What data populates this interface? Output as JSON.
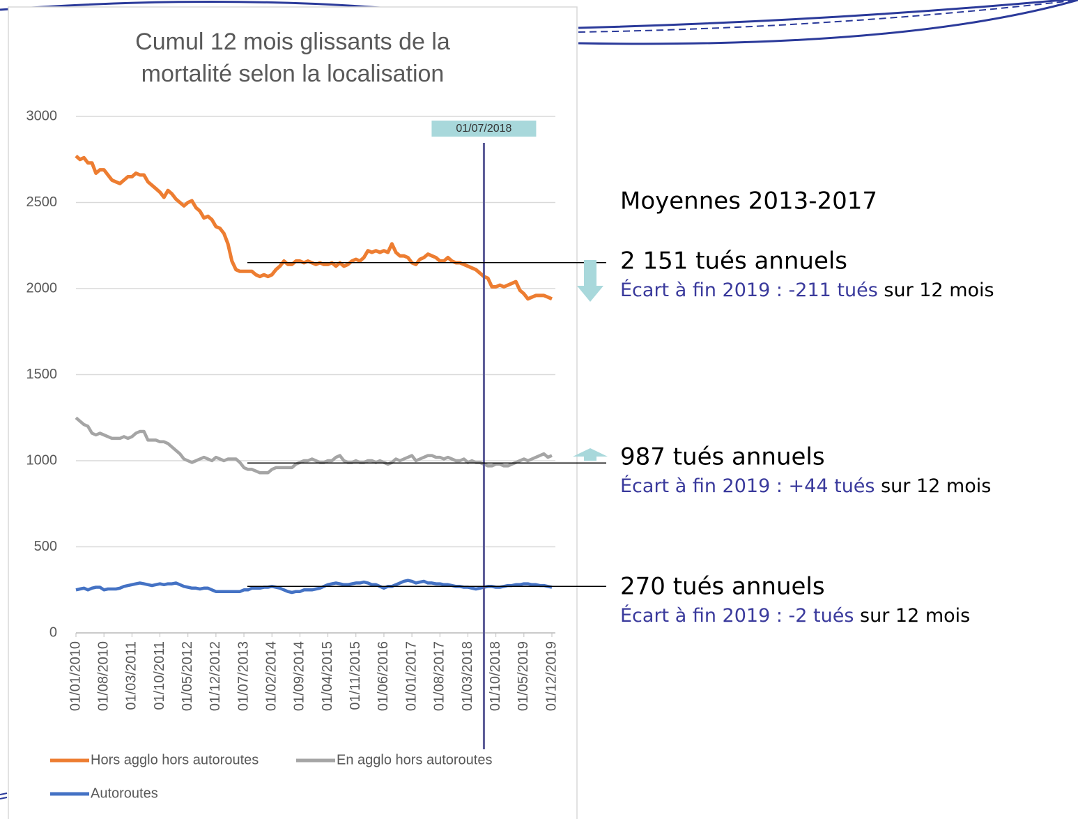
{
  "chart_data": {
    "type": "line",
    "title_lines": [
      "Cumul 12 mois glissants de la",
      "mortalité selon la localisation"
    ],
    "categories": [
      "01/01/2010",
      null,
      null,
      null,
      null,
      null,
      null,
      "01/08/2010",
      null,
      null,
      null,
      null,
      null,
      null,
      "01/03/2011",
      null,
      null,
      null,
      null,
      null,
      null,
      "01/10/2011",
      null,
      null,
      null,
      null,
      null,
      null,
      "01/05/2012",
      null,
      null,
      null,
      null,
      null,
      null,
      "01/12/2012",
      null,
      null,
      null,
      null,
      null,
      null,
      "01/07/2013",
      null,
      null,
      null,
      null,
      null,
      null,
      "01/02/2014",
      null,
      null,
      null,
      null,
      null,
      null,
      "01/09/2014",
      null,
      null,
      null,
      null,
      null,
      null,
      "01/04/2015",
      null,
      null,
      null,
      null,
      null,
      null,
      "01/11/2015",
      null,
      null,
      null,
      null,
      null,
      null,
      "01/06/2016",
      null,
      null,
      null,
      null,
      null,
      null,
      "01/01/2017",
      null,
      null,
      null,
      null,
      null,
      null,
      "01/08/2017",
      null,
      null,
      null,
      null,
      null,
      null,
      "01/03/2018",
      null,
      null,
      null,
      null,
      null,
      null,
      "01/10/2018",
      null,
      null,
      null,
      null,
      null,
      null,
      "01/05/2019",
      null,
      null,
      null,
      null,
      null,
      null,
      "01/12/2019"
    ],
    "series": [
      {
        "name": "Hors agglo hors autoroutes",
        "color": "#ed7d31",
        "values": [
          2770,
          2750,
          2760,
          2730,
          2730,
          2670,
          2690,
          2690,
          2660,
          2630,
          2620,
          2610,
          2630,
          2650,
          2650,
          2670,
          2660,
          2660,
          2620,
          2600,
          2580,
          2560,
          2530,
          2570,
          2550,
          2520,
          2500,
          2480,
          2500,
          2510,
          2470,
          2450,
          2410,
          2420,
          2400,
          2360,
          2350,
          2320,
          2260,
          2160,
          2110,
          2100,
          2100,
          2100,
          2100,
          2080,
          2070,
          2080,
          2070,
          2080,
          2110,
          2130,
          2160,
          2140,
          2140,
          2160,
          2160,
          2150,
          2160,
          2150,
          2140,
          2150,
          2140,
          2140,
          2150,
          2130,
          2150,
          2130,
          2140,
          2160,
          2170,
          2160,
          2180,
          2220,
          2210,
          2220,
          2210,
          2220,
          2210,
          2260,
          2210,
          2190,
          2190,
          2180,
          2150,
          2140,
          2170,
          2180,
          2200,
          2190,
          2180,
          2160,
          2160,
          2180,
          2160,
          2150,
          2150,
          2140,
          2130,
          2120,
          2110,
          2090,
          2070,
          2060,
          2010,
          2010,
          2020,
          2010,
          2020,
          2030,
          2040,
          1990,
          1970,
          1940,
          1950,
          1960,
          1960,
          1960,
          1950,
          1940
        ]
      },
      {
        "name": "En agglo hors autoroutes",
        "color": "#a5a5a5",
        "values": [
          1250,
          1230,
          1210,
          1200,
          1160,
          1150,
          1160,
          1150,
          1140,
          1130,
          1130,
          1130,
          1140,
          1130,
          1140,
          1160,
          1170,
          1170,
          1120,
          1120,
          1120,
          1110,
          1110,
          1100,
          1080,
          1060,
          1040,
          1010,
          1000,
          990,
          1000,
          1010,
          1020,
          1010,
          1000,
          1020,
          1010,
          1000,
          1010,
          1010,
          1010,
          990,
          960,
          950,
          950,
          940,
          930,
          930,
          930,
          950,
          960,
          960,
          960,
          960,
          960,
          980,
          990,
          1000,
          1000,
          1010,
          1000,
          990,
          990,
          1000,
          1000,
          1020,
          1030,
          1000,
          990,
          990,
          1000,
          990,
          990,
          1000,
          1000,
          990,
          1000,
          990,
          980,
          990,
          1010,
          1000,
          1010,
          1020,
          1030,
          1000,
          1010,
          1020,
          1030,
          1030,
          1020,
          1020,
          1010,
          1020,
          1010,
          1000,
          1000,
          1010,
          990,
          1000,
          990,
          990,
          980,
          970,
          970,
          980,
          980,
          970,
          970,
          980,
          990,
          1000,
          1010,
          1000,
          1010,
          1020,
          1030,
          1040,
          1020,
          1030
        ]
      },
      {
        "name": "Autoroutes",
        "color": "#4472c4",
        "values": [
          250,
          255,
          260,
          250,
          260,
          265,
          265,
          250,
          255,
          255,
          255,
          260,
          270,
          275,
          280,
          285,
          290,
          285,
          280,
          275,
          280,
          285,
          280,
          285,
          285,
          290,
          280,
          270,
          265,
          260,
          260,
          255,
          260,
          260,
          250,
          240,
          240,
          240,
          240,
          240,
          240,
          240,
          250,
          250,
          260,
          260,
          260,
          265,
          265,
          270,
          265,
          260,
          250,
          240,
          235,
          240,
          240,
          250,
          250,
          250,
          255,
          260,
          270,
          280,
          285,
          290,
          285,
          280,
          280,
          285,
          290,
          290,
          295,
          290,
          280,
          280,
          270,
          260,
          270,
          270,
          280,
          290,
          300,
          305,
          300,
          290,
          295,
          300,
          290,
          290,
          285,
          285,
          280,
          280,
          275,
          270,
          270,
          265,
          265,
          260,
          255,
          260,
          265,
          270,
          270,
          265,
          265,
          270,
          275,
          275,
          280,
          280,
          285,
          285,
          280,
          280,
          275,
          275,
          270,
          265
        ]
      }
    ],
    "ylim": [
      0,
      3000
    ],
    "yticks": [
      0,
      500,
      1000,
      1500,
      2000,
      2500,
      3000
    ],
    "grid": true,
    "legend": "bottom",
    "vline": {
      "label": "01/07/2018",
      "color": "#5a5a96"
    },
    "averages_title": "Moyennes 2013-2017",
    "averages": [
      {
        "value": 2151,
        "label": "2 151 tués annuels",
        "gap_prefix": "Écart à fin 2019 :",
        "gap": "-211 tués",
        "gap_suffix": "sur 12 mois"
      },
      {
        "value": 987,
        "label": "987 tués annuels",
        "gap_prefix": "Écart à fin 2019 :",
        "gap": "+44 tués",
        "gap_suffix": "sur 12 mois"
      },
      {
        "value": 270,
        "label": "270 tués annuels",
        "gap_prefix": "Écart à fin 2019 :",
        "gap": "-2 tués",
        "gap_suffix": "sur 12 mois"
      }
    ]
  }
}
